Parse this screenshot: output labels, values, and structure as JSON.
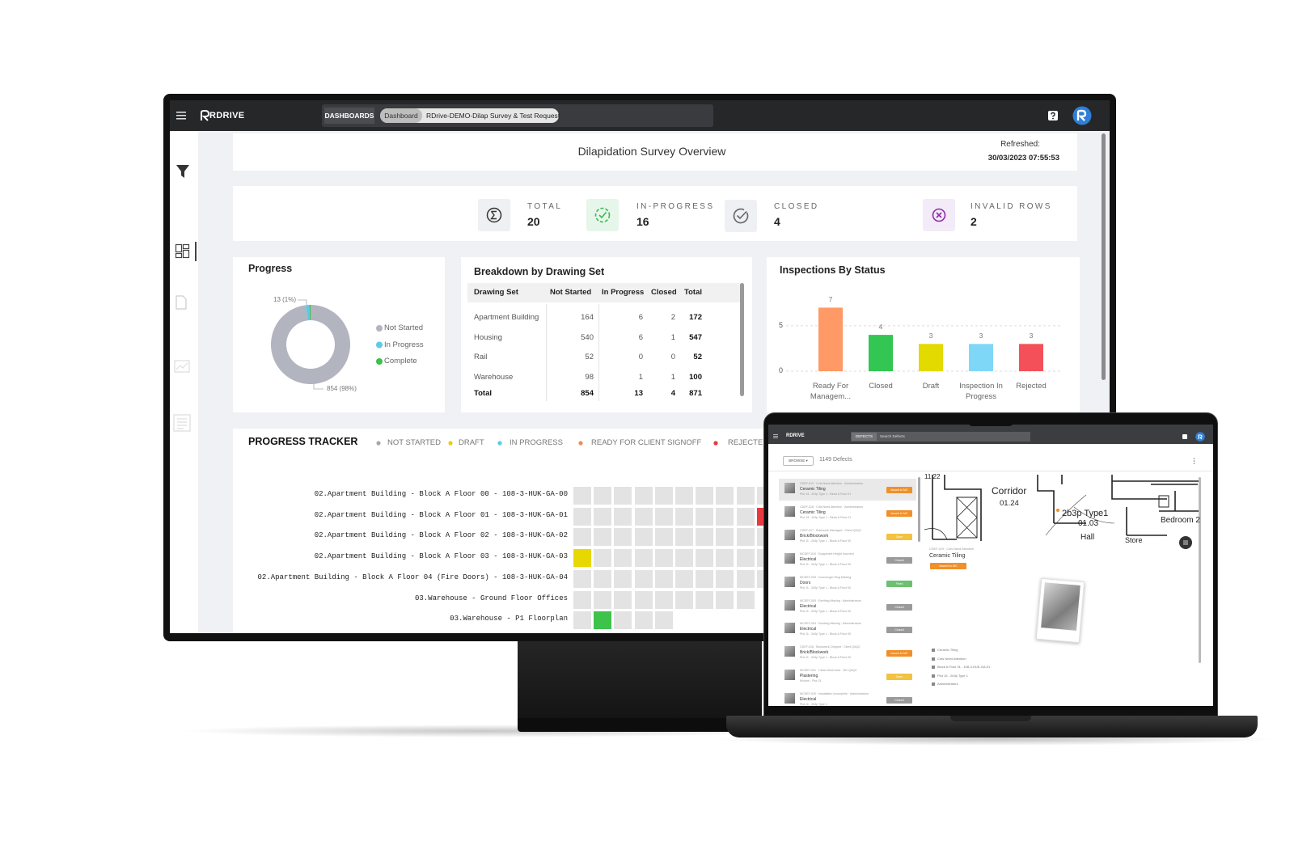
{
  "monitor": {
    "app_bar": {
      "brand": "RDRIVE",
      "section": "DASHBOARDS",
      "breadcrumb": [
        "Dashboard",
        "RDrive-DEMO-Dilap Survey & Test Request"
      ]
    },
    "header": {
      "title": "Dilapidation Survey Overview",
      "refreshed_label": "Refreshed:",
      "refreshed_at": "30/03/2023 07:55:53"
    },
    "kpis": [
      {
        "label": "TOTAL",
        "value": 20
      },
      {
        "label": "IN-PROGRESS",
        "value": 16
      },
      {
        "label": "CLOSED",
        "value": 4
      },
      {
        "label": "INVALID ROWS",
        "value": 2
      }
    ],
    "progress": {
      "type": "pie",
      "title": "Progress",
      "categories": [
        "Not Started",
        "In Progress",
        "Complete"
      ],
      "values": [
        854,
        13,
        4
      ],
      "value_labels": [
        "854 (98%)",
        "13 (1%)",
        null
      ],
      "colors": [
        "#b2b4c0",
        "#5ccbe6",
        "#3dbf4c"
      ]
    },
    "breakdown": {
      "title": "Breakdown by Drawing Set",
      "columns": [
        "Drawing Set",
        "Not Started",
        "In Progress",
        "Closed",
        "Total"
      ],
      "rows": [
        [
          "Apartment Building",
          164,
          6,
          2,
          172
        ],
        [
          "Housing",
          540,
          6,
          1,
          547
        ],
        [
          "Rail",
          52,
          0,
          0,
          52
        ],
        [
          "Warehouse",
          98,
          1,
          1,
          100
        ],
        [
          "Total",
          854,
          13,
          4,
          871
        ]
      ]
    },
    "inspections": {
      "type": "bar",
      "title": "Inspections By Status",
      "categories": [
        "Ready For Managem...",
        "Closed",
        "Draft",
        "Inspection In Progress",
        "Rejected"
      ],
      "values": [
        7,
        4,
        3,
        3,
        3
      ],
      "colors": [
        "#ff9966",
        "#33c653",
        "#e3da00",
        "#7fd7f7",
        "#f4505a"
      ],
      "ylim": [
        0,
        9
      ],
      "yticks": [
        0,
        5
      ],
      "grid": true
    },
    "tracker": {
      "title": "PROGRESS TRACKER",
      "legend": [
        {
          "name": "NOT STARTED",
          "color": "#a8a8a8"
        },
        {
          "name": "DRAFT",
          "color": "#e6d200"
        },
        {
          "name": "IN PROGRESS",
          "color": "#5ccbe6"
        },
        {
          "name": "READY FOR CLIENT SIGNOFF",
          "color": "#f08a5d"
        },
        {
          "name": "REJECTED",
          "color": "#e8393f"
        }
      ],
      "rows": [
        {
          "label": "02.Apartment Building - Block A Floor 00 - 108-3-HUK-GA-00",
          "cells": [
            "#e3e3e3",
            "#e3e3e3",
            "#e3e3e3",
            "#e3e3e3",
            "#e3e3e3",
            "#e3e3e3",
            "#e3e3e3",
            "#e3e3e3",
            "#e3e3e3",
            "#e3e3e3"
          ]
        },
        {
          "label": "02.Apartment Building - Block A Floor 01 - 108-3-HUK-GA-01",
          "cells": [
            "#e3e3e3",
            "#e3e3e3",
            "#e3e3e3",
            "#e3e3e3",
            "#e3e3e3",
            "#e3e3e3",
            "#e3e3e3",
            "#e3e3e3",
            "#e3e3e3",
            "#e8393f"
          ]
        },
        {
          "label": "02.Apartment Building - Block A Floor 02 - 108-3-HUK-GA-02",
          "cells": [
            "#e3e3e3",
            "#e3e3e3",
            "#e3e3e3",
            "#e3e3e3",
            "#e3e3e3",
            "#e3e3e3",
            "#e3e3e3",
            "#e3e3e3",
            "#e3e3e3",
            "#e3e3e3"
          ]
        },
        {
          "label": "02.Apartment Building - Block A Floor 03 - 108-3-HUK-GA-03",
          "cells": [
            "#e6d800",
            "#e3e3e3",
            "#e3e3e3",
            "#e3e3e3",
            "#e3e3e3",
            "#e3e3e3",
            "#e3e3e3",
            "#e3e3e3",
            "#e3e3e3",
            "#e3e3e3"
          ]
        },
        {
          "label": "02.Apartment Building - Block A Floor 04 (Fire Doors) - 108-3-HUK-GA-04",
          "cells": [
            "#e3e3e3",
            "#e3e3e3",
            "#e3e3e3",
            "#e3e3e3",
            "#e3e3e3",
            "#e3e3e3",
            "#e3e3e3",
            "#e3e3e3",
            "#e3e3e3",
            "#e3e3e3"
          ]
        },
        {
          "label": "03.Warehouse - Ground Floor Offices",
          "cells": [
            "#e3e3e3",
            "#e3e3e3",
            "#e3e3e3",
            "#e3e3e3",
            "#e3e3e3",
            "#e3e3e3",
            "#e3e3e3",
            "#e3e3e3",
            "#e3e3e3"
          ]
        },
        {
          "label": "03.Warehouse - P1 Floorplan",
          "cells": [
            "#e3e3e3",
            "#3dc24a",
            "#e3e3e3",
            "#e3e3e3",
            "#e3e3e3"
          ]
        }
      ]
    }
  },
  "laptop": {
    "app_bar": {
      "brand": "RDRIVE",
      "tab": "DEFECTS",
      "search_placeholder": "Search Defects"
    },
    "toolbar": {
      "browse": "BROWSE ▾",
      "count": "1149 Defects"
    },
    "defects": [
      {
        "code": "CDEF-019 · Cuts Need Attention · Administrators",
        "title": "Ceramic Tiling",
        "location": "Plot 15 - 2b3p Type 1 - Block A Floor 01",
        "status": "Issued to MC",
        "status_color": "#f0902a"
      },
      {
        "code": "CDEF-018 · Cuts Need Attention · Administrators",
        "title": "Ceramic Tiling",
        "location": "Plot 15 - 2b3p Type 1 - Block A Floor 01",
        "status": "Issued to MC",
        "status_color": "#f0902a"
      },
      {
        "code": "CDEF-017 · Brickwork Damaged · Client QAQC",
        "title": "Brick/Blockwork",
        "location": "Plot 11 - 2b3p Type 1 - Block A Floor 00",
        "status": "Open",
        "status_color": "#f2c240"
      },
      {
        "code": "MCDEF-010 · Equipment Height Incorrect",
        "title": "Electrical",
        "location": "Plot 11 - 2b3p Type 1 - Block A Floor 00",
        "status": "Closed",
        "status_color": "#9a9a9a"
      },
      {
        "code": "MCDEF-009 · Ironmonger Ring Missing",
        "title": "Doors",
        "location": "Plot 11 - 2b3p Type 1 - Block A Floor 00",
        "status": "Fixed",
        "status_color": "#6cc070"
      },
      {
        "code": "MCDEF-005 · Earthing Missing · Administrators",
        "title": "Electrical",
        "location": "Plot 11 - 2b3p Type 1 - Block A Floor 00",
        "status": "Closed",
        "status_color": "#9a9a9a"
      },
      {
        "code": "MCDEF-004 · Earthing Missing · Administrators",
        "title": "Electrical",
        "location": "Plot 11 - 2b3p Type 1 - Block A Floor 00",
        "status": "Closed",
        "status_color": "#9a9a9a"
      },
      {
        "code": "CDEF-016 · Blockwork Chipped · Client QAQC",
        "title": "Brick/Blockwork",
        "location": "Plot 11 - 2b3p Type 1 - Block A Floor 00",
        "status": "Issued to MC",
        "status_color": "#f0902a"
      },
      {
        "code": "MCDEF-001 · Clean Work Area · MC QAQC",
        "title": "Plastering",
        "location": "Kitchen - Plot 15",
        "status": "Open",
        "status_color": "#f2c240"
      },
      {
        "code": "MCDEF-020 · Installation Incomplete · Administrators",
        "title": "Electrical",
        "location": "Plot 11 - 2b3p Type 1",
        "status": "Closed",
        "status_color": "#9a9a9a"
      }
    ],
    "plan": {
      "corridor": "Corridor",
      "corridor_no": "01.24",
      "unit": "2b3p Type1",
      "unit_no": "01.03",
      "hall": "Hall",
      "bedroom": "Bedroom 2",
      "store": "Store",
      "level": "11.22"
    },
    "popup": {
      "code": "CDEF-019 · Cuts Need Attention",
      "title": "Ceramic Tiling",
      "status": "Issued to MC"
    },
    "details": [
      "Ceramic Tiling",
      "Cuts Need Attention",
      "Block A Floor 01 - 108-3-HUK-GA-01",
      "Plot 15 - 2b3p Type 1",
      "Administrators"
    ]
  }
}
